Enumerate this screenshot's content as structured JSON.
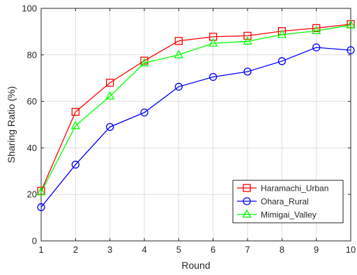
{
  "chart_data": {
    "type": "line",
    "title": "",
    "xlabel": "Round",
    "ylabel": "Sharing Ratio (%)",
    "x": [
      1,
      2,
      3,
      4,
      5,
      6,
      7,
      8,
      9,
      10
    ],
    "xlim": [
      1,
      10
    ],
    "ylim": [
      0,
      100
    ],
    "xticks": [
      "1",
      "2",
      "3",
      "4",
      "5",
      "6",
      "7",
      "8",
      "9",
      "10"
    ],
    "yticks": [
      "0",
      "20",
      "40",
      "60",
      "80",
      "100"
    ],
    "grid": true,
    "legend_position": "bottom-right",
    "series": [
      {
        "name": "Haramachi_Urban",
        "color": "#ff0000",
        "marker": "square",
        "values": [
          21.5,
          55.5,
          68.0,
          77.5,
          86.0,
          87.8,
          88.2,
          90.2,
          91.5,
          93.2
        ]
      },
      {
        "name": "Ohara_Rural",
        "color": "#0000ff",
        "marker": "circle",
        "values": [
          14.5,
          32.8,
          49.0,
          55.2,
          66.3,
          70.5,
          72.8,
          77.3,
          83.2,
          82.0
        ]
      },
      {
        "name": "Mimigai_Valley",
        "color": "#00ff00",
        "marker": "triangle",
        "values": [
          21.0,
          49.5,
          62.2,
          76.5,
          80.0,
          85.0,
          85.8,
          88.7,
          90.3,
          92.8
        ]
      }
    ]
  }
}
